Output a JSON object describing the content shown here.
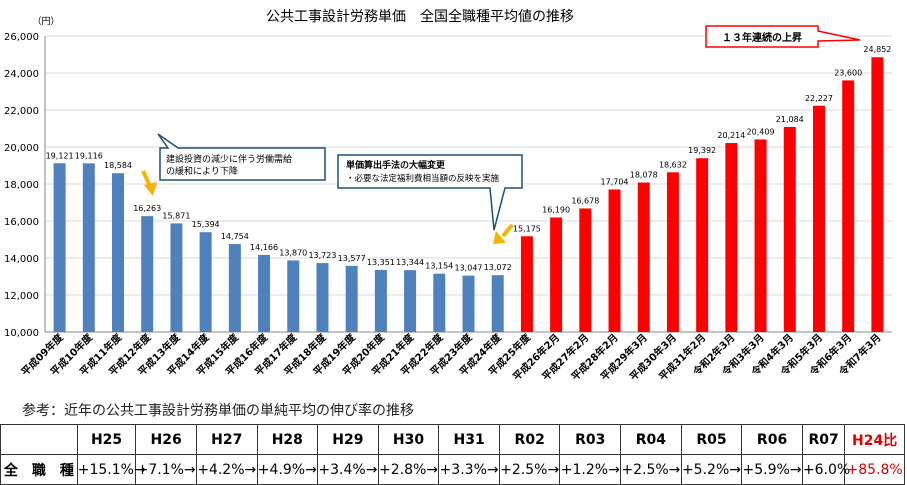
{
  "chart_data": {
    "type": "bar",
    "title": "公共工事設計労務単価　全国全職種平均値の推移",
    "ylabel": "（円）",
    "ylim": [
      10000,
      26000
    ],
    "yticks": [
      "10,000",
      "12,000",
      "14,000",
      "16,000",
      "18,000",
      "20,000",
      "22,000",
      "24,000",
      "26,000"
    ],
    "categories": [
      "平成09年度",
      "平成10年度",
      "平成11年度",
      "平成12年度",
      "平成13年度",
      "平成14年度",
      "平成15年度",
      "平成16年度",
      "平成17年度",
      "平成18年度",
      "平成19年度",
      "平成20年度",
      "平成21年度",
      "平成22年度",
      "平成23年度",
      "平成24年度",
      "平成25年度",
      "平成26年2月",
      "平成27年2月",
      "平成28年2月",
      "平成29年3月",
      "平成30年3月",
      "平成31年2月",
      "令和2年3月",
      "令和3年3月",
      "令和4年3月",
      "令和5年3月",
      "令和6年3月",
      "令和7年3月"
    ],
    "values": [
      19121,
      19116,
      18584,
      16263,
      15871,
      15394,
      14754,
      14166,
      13870,
      13723,
      13577,
      13351,
      13344,
      13154,
      13047,
      13072,
      15175,
      16190,
      16678,
      17704,
      18078,
      18632,
      19392,
      20214,
      20409,
      21084,
      22227,
      23600,
      24852
    ],
    "value_labels": [
      "19,121",
      "19,116",
      "18,584",
      "16,263",
      "15,871",
      "15,394",
      "14,754",
      "14,166",
      "13,870",
      "13,723",
      "13,577",
      "13,351",
      "13,344",
      "13,154",
      "13,047",
      "13,072",
      "15,175",
      "16,190",
      "16,678",
      "17,704",
      "18,078",
      "18,632",
      "19,392",
      "20,214",
      "20,409",
      "21,084",
      "22,227",
      "23,600",
      "24,852"
    ],
    "colors": {
      "before": "#4f81bd",
      "after": "#ff0000"
    },
    "first_red_index": 16,
    "grid": true,
    "legend": "none"
  },
  "annotations": {
    "callout1_line1": "建設投資の減少に伴う労働需給",
    "callout1_line2": "の緩和により下降",
    "callout2_title": "単価算出手法の大幅変更",
    "callout2_body": "・必要な法定福利費相当額の反映を実施",
    "callout3": "１３年連続の上昇"
  },
  "rate_table": {
    "caption": "参考：近年の公共工事設計労務単価の単純平均の伸び率の推移",
    "headers": [
      "H25",
      "H26",
      "H27",
      "H28",
      "H29",
      "H30",
      "H31",
      "R02",
      "R03",
      "R04",
      "R05",
      "R06",
      "R07",
      "H24比"
    ],
    "row_label": "全　職　種",
    "values": [
      "+15.1%→",
      "+7.1%→",
      "+4.2%→",
      "+4.9%→",
      "+3.4%→",
      "+2.8%→",
      "+3.3%→",
      "+2.5%→",
      "+1.2%→",
      "+2.5%→",
      "+5.2%→",
      "+5.9%→",
      "+6.0%",
      "+85.8%"
    ]
  }
}
